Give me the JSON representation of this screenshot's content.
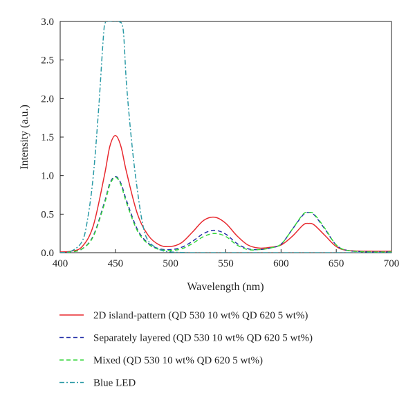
{
  "chart_data": {
    "type": "line",
    "title": "",
    "xlabel": "Wavelength (nm)",
    "ylabel": "Intensity (a.u.)",
    "xlim": [
      400,
      700
    ],
    "ylim": [
      0,
      3.0
    ],
    "x_ticks": [
      400,
      450,
      500,
      550,
      600,
      650,
      700
    ],
    "x_tick_labels": [
      "400",
      "450",
      "500",
      "550",
      "600",
      "650",
      "700"
    ],
    "y_ticks": [
      0,
      0.5,
      1.0,
      1.5,
      2.0,
      2.5,
      3.0
    ],
    "y_tick_labels": [
      "0.0",
      "0.5",
      "1.0",
      "1.5",
      "2.0",
      "2.5",
      "3.0"
    ],
    "grid": false,
    "legend_position": "bottom",
    "series": [
      {
        "name": "2D island-pattern (QD 530 10 wt% QD 620 5 wt%)",
        "color": "#e8292f",
        "dash": "solid",
        "x": [
          400,
          410,
          420,
          430,
          440,
          445,
          450,
          455,
          460,
          470,
          480,
          490,
          500,
          510,
          520,
          530,
          540,
          550,
          560,
          570,
          580,
          590,
          600,
          610,
          620,
          625,
          630,
          640,
          650,
          660,
          680,
          700
        ],
        "y": [
          0.01,
          0.02,
          0.08,
          0.35,
          1.0,
          1.38,
          1.52,
          1.38,
          1.05,
          0.5,
          0.22,
          0.1,
          0.08,
          0.13,
          0.27,
          0.42,
          0.46,
          0.38,
          0.22,
          0.1,
          0.06,
          0.07,
          0.1,
          0.21,
          0.36,
          0.38,
          0.36,
          0.22,
          0.08,
          0.03,
          0.02,
          0.02
        ]
      },
      {
        "name": "Separately layered (QD 530 10 wt% QD 620 5 wt%)",
        "color": "#2430a8",
        "dash": "dashed",
        "x": [
          400,
          410,
          420,
          430,
          440,
          445,
          450,
          455,
          460,
          470,
          480,
          490,
          500,
          510,
          520,
          530,
          540,
          550,
          560,
          570,
          580,
          590,
          600,
          610,
          620,
          625,
          630,
          640,
          650,
          660,
          680,
          700
        ],
        "y": [
          0.0,
          0.01,
          0.05,
          0.22,
          0.65,
          0.9,
          0.99,
          0.9,
          0.68,
          0.3,
          0.12,
          0.05,
          0.04,
          0.07,
          0.15,
          0.25,
          0.29,
          0.24,
          0.12,
          0.05,
          0.04,
          0.06,
          0.11,
          0.3,
          0.49,
          0.52,
          0.49,
          0.3,
          0.1,
          0.03,
          0.01,
          0.01
        ]
      },
      {
        "name": "Mixed (QD 530 10 wt% QD 620 5 wt%)",
        "color": "#35d63a",
        "dash": "dashed",
        "x": [
          400,
          410,
          420,
          430,
          440,
          445,
          450,
          455,
          460,
          470,
          480,
          490,
          500,
          510,
          520,
          530,
          540,
          550,
          560,
          570,
          580,
          590,
          600,
          610,
          620,
          625,
          630,
          640,
          650,
          660,
          680,
          700
        ],
        "y": [
          0.0,
          0.01,
          0.05,
          0.21,
          0.63,
          0.88,
          0.98,
          0.88,
          0.65,
          0.28,
          0.11,
          0.04,
          0.03,
          0.05,
          0.12,
          0.21,
          0.25,
          0.21,
          0.1,
          0.04,
          0.04,
          0.06,
          0.11,
          0.3,
          0.5,
          0.52,
          0.5,
          0.31,
          0.1,
          0.03,
          0.01,
          0.01
        ]
      },
      {
        "name": "Blue LED",
        "color": "#2a9aa6",
        "dash": "dashdot",
        "x": [
          400,
          410,
          420,
          425,
          430,
          435,
          440,
          443,
          447,
          450,
          453,
          457,
          460,
          465,
          470,
          475,
          480,
          490,
          500,
          520,
          550,
          600,
          650,
          700
        ],
        "y": [
          0.0,
          0.02,
          0.15,
          0.45,
          1.0,
          1.9,
          2.95,
          3.0,
          3.0,
          3.0,
          3.0,
          2.9,
          2.2,
          1.4,
          0.8,
          0.35,
          0.15,
          0.04,
          0.01,
          0.0,
          0.0,
          0.0,
          0.0,
          0.0
        ]
      }
    ]
  }
}
